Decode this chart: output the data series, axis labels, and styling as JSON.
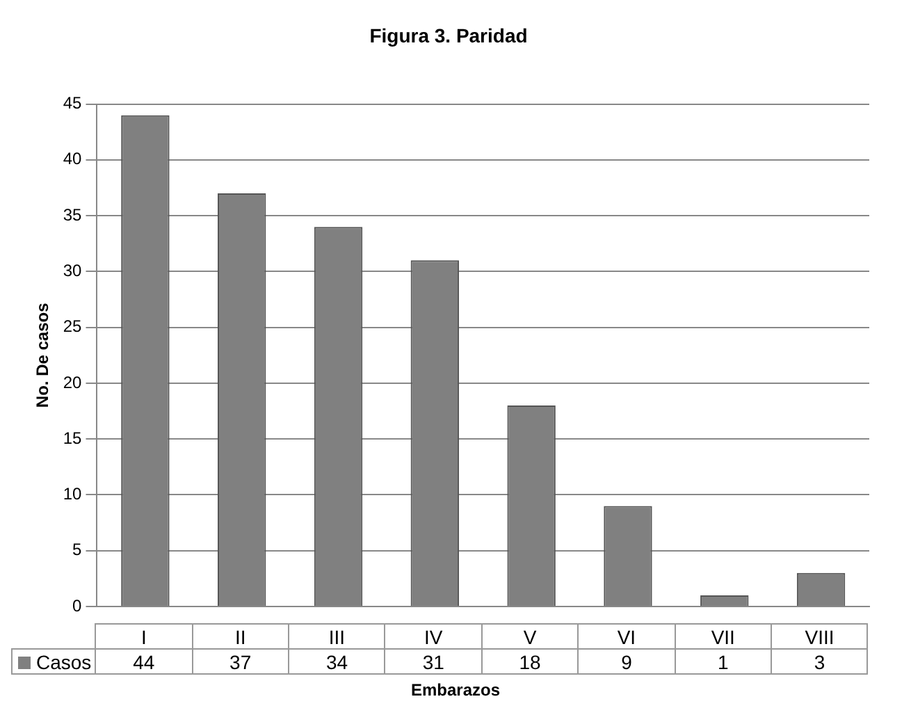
{
  "chart_data": {
    "type": "bar",
    "title": "Figura 3. Paridad",
    "xlabel": "Embarazos",
    "ylabel": "No. De casos",
    "categories": [
      "I",
      "II",
      "III",
      "IV",
      "V",
      "VI",
      "VII",
      "VIII"
    ],
    "series": [
      {
        "name": "Casos",
        "color": "#808080",
        "values": [
          44,
          37,
          34,
          31,
          18,
          9,
          1,
          3
        ]
      }
    ],
    "ylim": [
      0,
      45
    ],
    "yticks": [
      0,
      5,
      10,
      15,
      20,
      25,
      30,
      35,
      40,
      45
    ],
    "grid": "y",
    "legend": "bottom left",
    "data_labels": true
  }
}
